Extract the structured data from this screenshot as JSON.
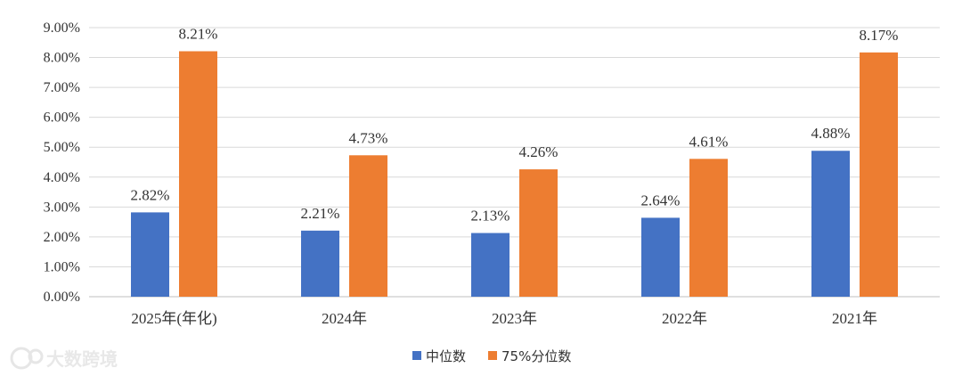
{
  "chart_data": {
    "type": "bar",
    "categories": [
      "2025年(年化)",
      "2024年",
      "2023年",
      "2022年",
      "2021年"
    ],
    "series": [
      {
        "name": "中位数",
        "values": [
          2.82,
          2.21,
          2.13,
          2.64,
          4.88
        ],
        "color": "#4472c4"
      },
      {
        "name": "75%分位数",
        "values": [
          8.21,
          4.73,
          4.26,
          4.61,
          8.17
        ],
        "color": "#ed7d31"
      }
    ],
    "data_labels": [
      [
        "2.82%",
        "2.21%",
        "2.13%",
        "2.64%",
        "4.88%"
      ],
      [
        "8.21%",
        "4.73%",
        "4.26%",
        "4.61%",
        "8.17%"
      ]
    ],
    "yticks": [
      "0.00%",
      "1.00%",
      "2.00%",
      "3.00%",
      "4.00%",
      "5.00%",
      "6.00%",
      "7.00%",
      "8.00%",
      "9.00%"
    ],
    "ylim": [
      0,
      9
    ],
    "grid": true,
    "legend_position": "bottom-center"
  },
  "watermark": {
    "text": "大数跨境",
    "icon": "logo-icon"
  }
}
